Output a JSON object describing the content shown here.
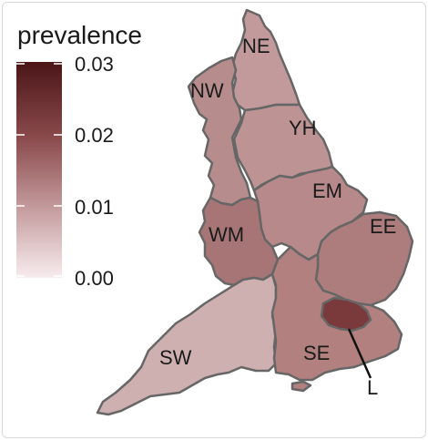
{
  "legend": {
    "title": "prevalence",
    "ticks": [
      "0.03",
      "0.02",
      "0.01",
      "0.00"
    ],
    "range": [
      0,
      0.03
    ],
    "color_low": "#f7ecee",
    "color_high": "#4a1517"
  },
  "regions": [
    {
      "code": "NE",
      "color": "#c29a9b"
    },
    {
      "code": "NW",
      "color": "#b78c8d"
    },
    {
      "code": "YH",
      "color": "#bd9394"
    },
    {
      "code": "EM",
      "color": "#b8898a"
    },
    {
      "code": "WM",
      "color": "#a77576"
    },
    {
      "code": "EE",
      "color": "#ad7c7d"
    },
    {
      "code": "SW",
      "color": "#cfb0b1"
    },
    {
      "code": "SE",
      "color": "#b1807f"
    },
    {
      "code": "L",
      "color": "#7a3a3b"
    }
  ]
}
